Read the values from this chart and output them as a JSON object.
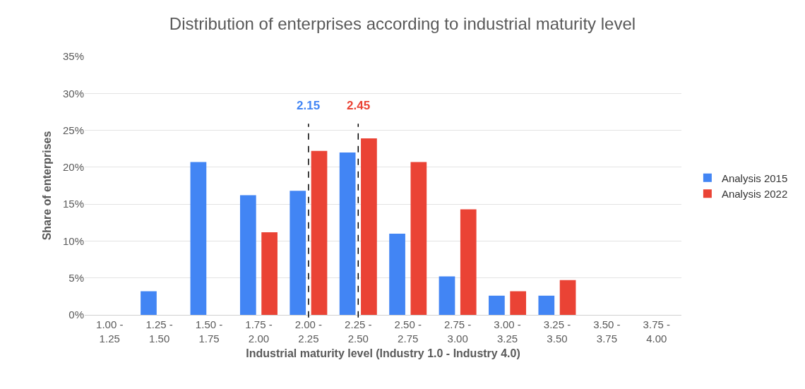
{
  "chart_data": {
    "type": "bar",
    "title": "Distribution of enterprises according to industrial maturity level",
    "xlabel": "Industrial maturity level (Industry 1.0 - Industry 4.0)",
    "ylabel": "Share of enterprises",
    "categories": [
      "1.00 - 1.25",
      "1.25 - 1.50",
      "1.50 - 1.75",
      "1.75 - 2.00",
      "2.00 - 2.25",
      "2.25 - 2.50",
      "2.50 - 2.75",
      "2.75 - 3.00",
      "3.00 - 3.25",
      "3.25 - 3.50",
      "3.50 - 3.75",
      "3.75 - 4.00"
    ],
    "series": [
      {
        "name": "Analysis 2015",
        "color": "#4285f4",
        "values": [
          0,
          3.2,
          20.7,
          16.2,
          16.8,
          22.0,
          11.0,
          5.2,
          2.6,
          2.6,
          0,
          0
        ]
      },
      {
        "name": "Analysis 2022",
        "color": "#ea4335",
        "values": [
          0,
          0,
          0,
          11.2,
          22.2,
          23.9,
          20.7,
          14.3,
          3.2,
          4.7,
          0,
          0
        ]
      }
    ],
    "ylim": [
      0,
      35
    ],
    "yticks": [
      {
        "value": 0,
        "label": "0%"
      },
      {
        "value": 5,
        "label": "5%"
      },
      {
        "value": 10,
        "label": "10%"
      },
      {
        "value": 15,
        "label": "15%"
      },
      {
        "value": 20,
        "label": "20%"
      },
      {
        "value": 25,
        "label": "25%"
      },
      {
        "value": 30,
        "label": "30%"
      },
      {
        "value": 35,
        "label": "35%"
      }
    ],
    "grid": "y",
    "legend": "right",
    "ref_lines": [
      {
        "axis": "x",
        "value": "2.00 - 2.25",
        "label": "2.15",
        "color": "#000000",
        "line_style": "dashed"
      },
      {
        "axis": "x",
        "value": "2.25 - 2.50",
        "label": "2.45",
        "color": "#000000",
        "line_style": "dashed"
      }
    ]
  }
}
